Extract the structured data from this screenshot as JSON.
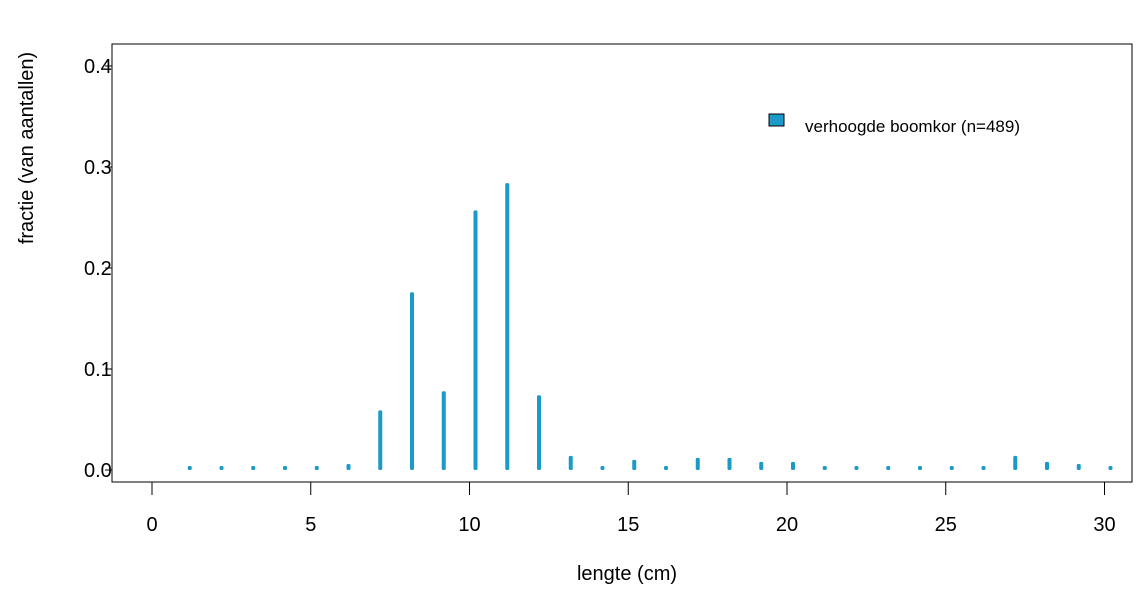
{
  "chart_data": {
    "type": "bar",
    "xlabel": "lengte (cm)",
    "ylabel": "fractie (van aantallen)",
    "xlim": [
      0,
      30
    ],
    "ylim": [
      0,
      0.4
    ],
    "x_ticks": [
      "0",
      "5",
      "10",
      "15",
      "20",
      "25",
      "30"
    ],
    "y_ticks": [
      "0.0",
      "0.1",
      "0.2",
      "0.3",
      "0.4"
    ],
    "legend_position": "top-right",
    "grid": false,
    "series": [
      {
        "name": "verhoogde boomkor (n=489)",
        "color": "#1b9ac8",
        "x": [
          1,
          2,
          3,
          4,
          5,
          6,
          7,
          8,
          9,
          10,
          11,
          12,
          13,
          14,
          15,
          16,
          17,
          18,
          19,
          20,
          21,
          22,
          23,
          24,
          25,
          26,
          27,
          28,
          29,
          30
        ],
        "values": [
          0.002,
          0.002,
          0.002,
          0.002,
          0.004,
          0.006,
          0.059,
          0.176,
          0.078,
          0.257,
          0.284,
          0.074,
          0.014,
          0.004,
          0.01,
          0.004,
          0.012,
          0.012,
          0.008,
          0.008,
          0.004,
          0.002,
          0.002,
          0.004,
          0.004,
          0.004,
          0.014,
          0.008,
          0.006,
          0.004
        ]
      }
    ]
  }
}
